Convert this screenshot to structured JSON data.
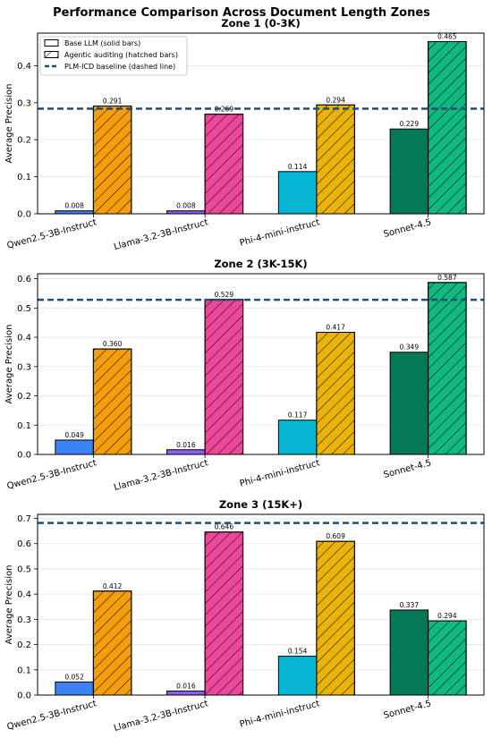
{
  "figure_title": "Performance Comparison Across Document Length Zones",
  "legend": {
    "items": [
      {
        "label": "Base LLM (solid bars)",
        "kind": "solid"
      },
      {
        "label": "Agentic auditing (hatched bars)",
        "kind": "hatched"
      },
      {
        "label": "PLM-ICD baseline (dashed line)",
        "kind": "dashed"
      }
    ],
    "placement": "upper-left of first panel"
  },
  "colors": {
    "qwen_base": "#3b82f6",
    "qwen_agentic": "#f59e0b",
    "llama_base": "#8b5cf6",
    "llama_agentic": "#ec4899",
    "phi_base": "#06b6d4",
    "phi_agentic": "#eab308",
    "sonnet_base": "#047857",
    "sonnet_agentic": "#10b981",
    "baseline": "#1f4e79"
  },
  "chart_data": [
    {
      "type": "bar",
      "title": "Zone 1 (0-3K)",
      "ylabel": "Average Precision",
      "categories": [
        "Qwen2.5-3B-Instruct",
        "Llama-3.2-3B-Instruct",
        "Phi-4-mini-instruct",
        "Sonnet-4.5"
      ],
      "series": [
        {
          "name": "Base LLM (solid bars)",
          "values": [
            0.008,
            0.008,
            0.114,
            0.229
          ]
        },
        {
          "name": "Agentic auditing (hatched bars)",
          "values": [
            0.291,
            0.269,
            0.294,
            0.465
          ]
        }
      ],
      "value_labels": {
        "base": [
          "0.008",
          "0.008",
          "0.114",
          "0.229"
        ],
        "agentic": [
          "0.291",
          "0.269",
          "0.294",
          "0.465"
        ]
      },
      "baseline": 0.284,
      "ylim": [
        0,
        0.488
      ],
      "yticks": [
        "0.0",
        "0.1",
        "0.2",
        "0.3",
        "0.4"
      ],
      "grid": "horizontal"
    },
    {
      "type": "bar",
      "title": "Zone 2 (3K-15K)",
      "ylabel": "Average Precision",
      "categories": [
        "Qwen2.5-3B-Instruct",
        "Llama-3.2-3B-Instruct",
        "Phi-4-mini-instruct",
        "Sonnet-4.5"
      ],
      "series": [
        {
          "name": "Base LLM (solid bars)",
          "values": [
            0.049,
            0.016,
            0.117,
            0.349
          ]
        },
        {
          "name": "Agentic auditing (hatched bars)",
          "values": [
            0.36,
            0.529,
            0.417,
            0.587
          ]
        }
      ],
      "value_labels": {
        "base": [
          "0.049",
          "0.016",
          "0.117",
          "0.349"
        ],
        "agentic": [
          "0.360",
          "0.529",
          "0.417",
          "0.587"
        ]
      },
      "baseline": 0.528,
      "ylim": [
        0,
        0.617
      ],
      "yticks": [
        "0.0",
        "0.1",
        "0.2",
        "0.3",
        "0.4",
        "0.5",
        "0.6"
      ],
      "grid": "horizontal"
    },
    {
      "type": "bar",
      "title": "Zone 3 (15K+)",
      "ylabel": "Average Precision",
      "categories": [
        "Qwen2.5-3B-Instruct",
        "Llama-3.2-3B-Instruct",
        "Phi-4-mini-instruct",
        "Sonnet-4.5"
      ],
      "series": [
        {
          "name": "Base LLM (solid bars)",
          "values": [
            0.052,
            0.016,
            0.154,
            0.337
          ]
        },
        {
          "name": "Agentic auditing (hatched bars)",
          "values": [
            0.412,
            0.646,
            0.609,
            0.294
          ]
        }
      ],
      "value_labels": {
        "base": [
          "0.052",
          "0.016",
          "0.154",
          "0.337"
        ],
        "agentic": [
          "0.412",
          "0.646",
          "0.609",
          "0.294"
        ]
      },
      "baseline": 0.682,
      "ylim": [
        0,
        0.716
      ],
      "yticks": [
        "0.0",
        "0.1",
        "0.2",
        "0.3",
        "0.4",
        "0.5",
        "0.6",
        "0.7"
      ],
      "grid": "horizontal"
    }
  ]
}
